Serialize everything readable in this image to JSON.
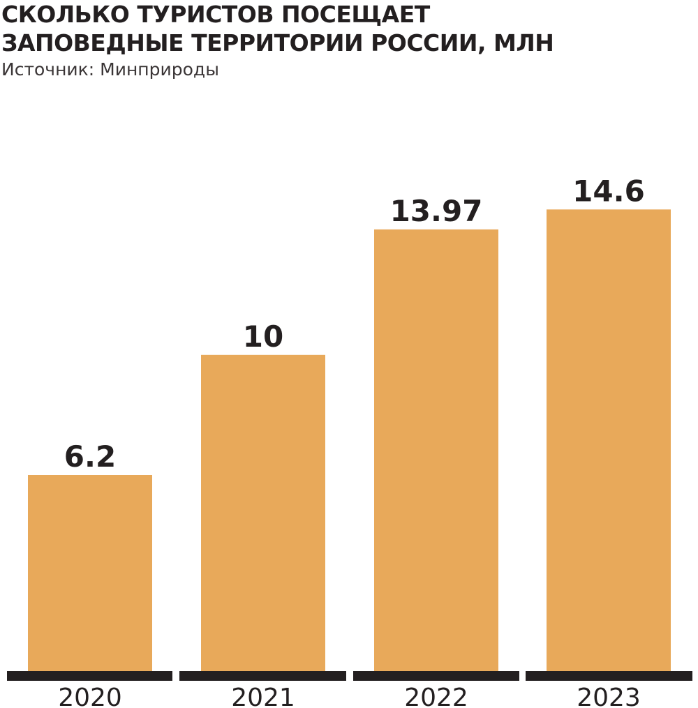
{
  "header": {
    "title_line1": "СКОЛЬКО ТУРИСТОВ ПОСЕЩАЕТ",
    "title_line2": "ЗАПОВЕДНЫЕ ТЕРРИТОРИИ РОССИИ,  МЛН",
    "source": "Источник: Минприроды"
  },
  "colors": {
    "bar": "#e8a95a",
    "baseline": "#231f20",
    "text": "#231f20"
  },
  "chart_data": {
    "type": "bar",
    "title": "СКОЛЬКО ТУРИСТОВ ПОСЕЩАЕТ ЗАПОВЕДНЫЕ ТЕРРИТОРИИ РОССИИ,  МЛН",
    "categories": [
      "2020",
      "2021",
      "2022",
      "2023"
    ],
    "values": [
      6.2,
      10,
      13.97,
      14.6
    ],
    "value_labels": [
      "6.2",
      "10",
      "13.97",
      "14.6"
    ],
    "xlabel": "",
    "ylabel": "",
    "grid": false,
    "legend": "none"
  }
}
